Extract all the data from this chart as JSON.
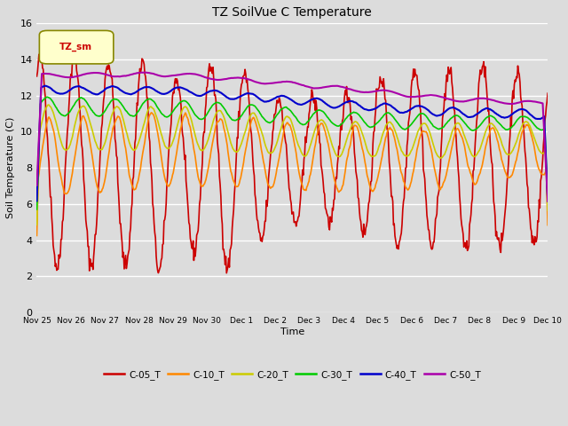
{
  "title": "TZ SoilVue C Temperature",
  "xlabel": "Time",
  "ylabel": "Soil Temperature (C)",
  "ylim": [
    0,
    16
  ],
  "yticks": [
    0,
    2,
    4,
    6,
    8,
    10,
    12,
    14,
    16
  ],
  "background_color": "#dcdcdc",
  "plot_bg_color": "#dcdcdc",
  "grid_color": "#ffffff",
  "legend_label": "TZ_sm",
  "xtick_labels": [
    "Nov 25",
    "Nov 26",
    "Nov 27",
    "Nov 28",
    "Nov 29",
    "Nov 30",
    "Dec 1",
    "Dec 2",
    "Dec 3",
    "Dec 4",
    "Dec 5",
    "Dec 6",
    "Dec 7",
    "Dec 8",
    "Dec 9",
    "Dec 10"
  ],
  "series": {
    "C-05_T": {
      "color": "#cc0000",
      "lw": 1.2
    },
    "C-10_T": {
      "color": "#ff8800",
      "lw": 1.2
    },
    "C-20_T": {
      "color": "#cccc00",
      "lw": 1.2
    },
    "C-30_T": {
      "color": "#00cc00",
      "lw": 1.2
    },
    "C-40_T": {
      "color": "#0000cc",
      "lw": 1.5
    },
    "C-50_T": {
      "color": "#aa00aa",
      "lw": 1.5
    }
  },
  "figsize": [
    6.4,
    4.8
  ],
  "dpi": 100
}
